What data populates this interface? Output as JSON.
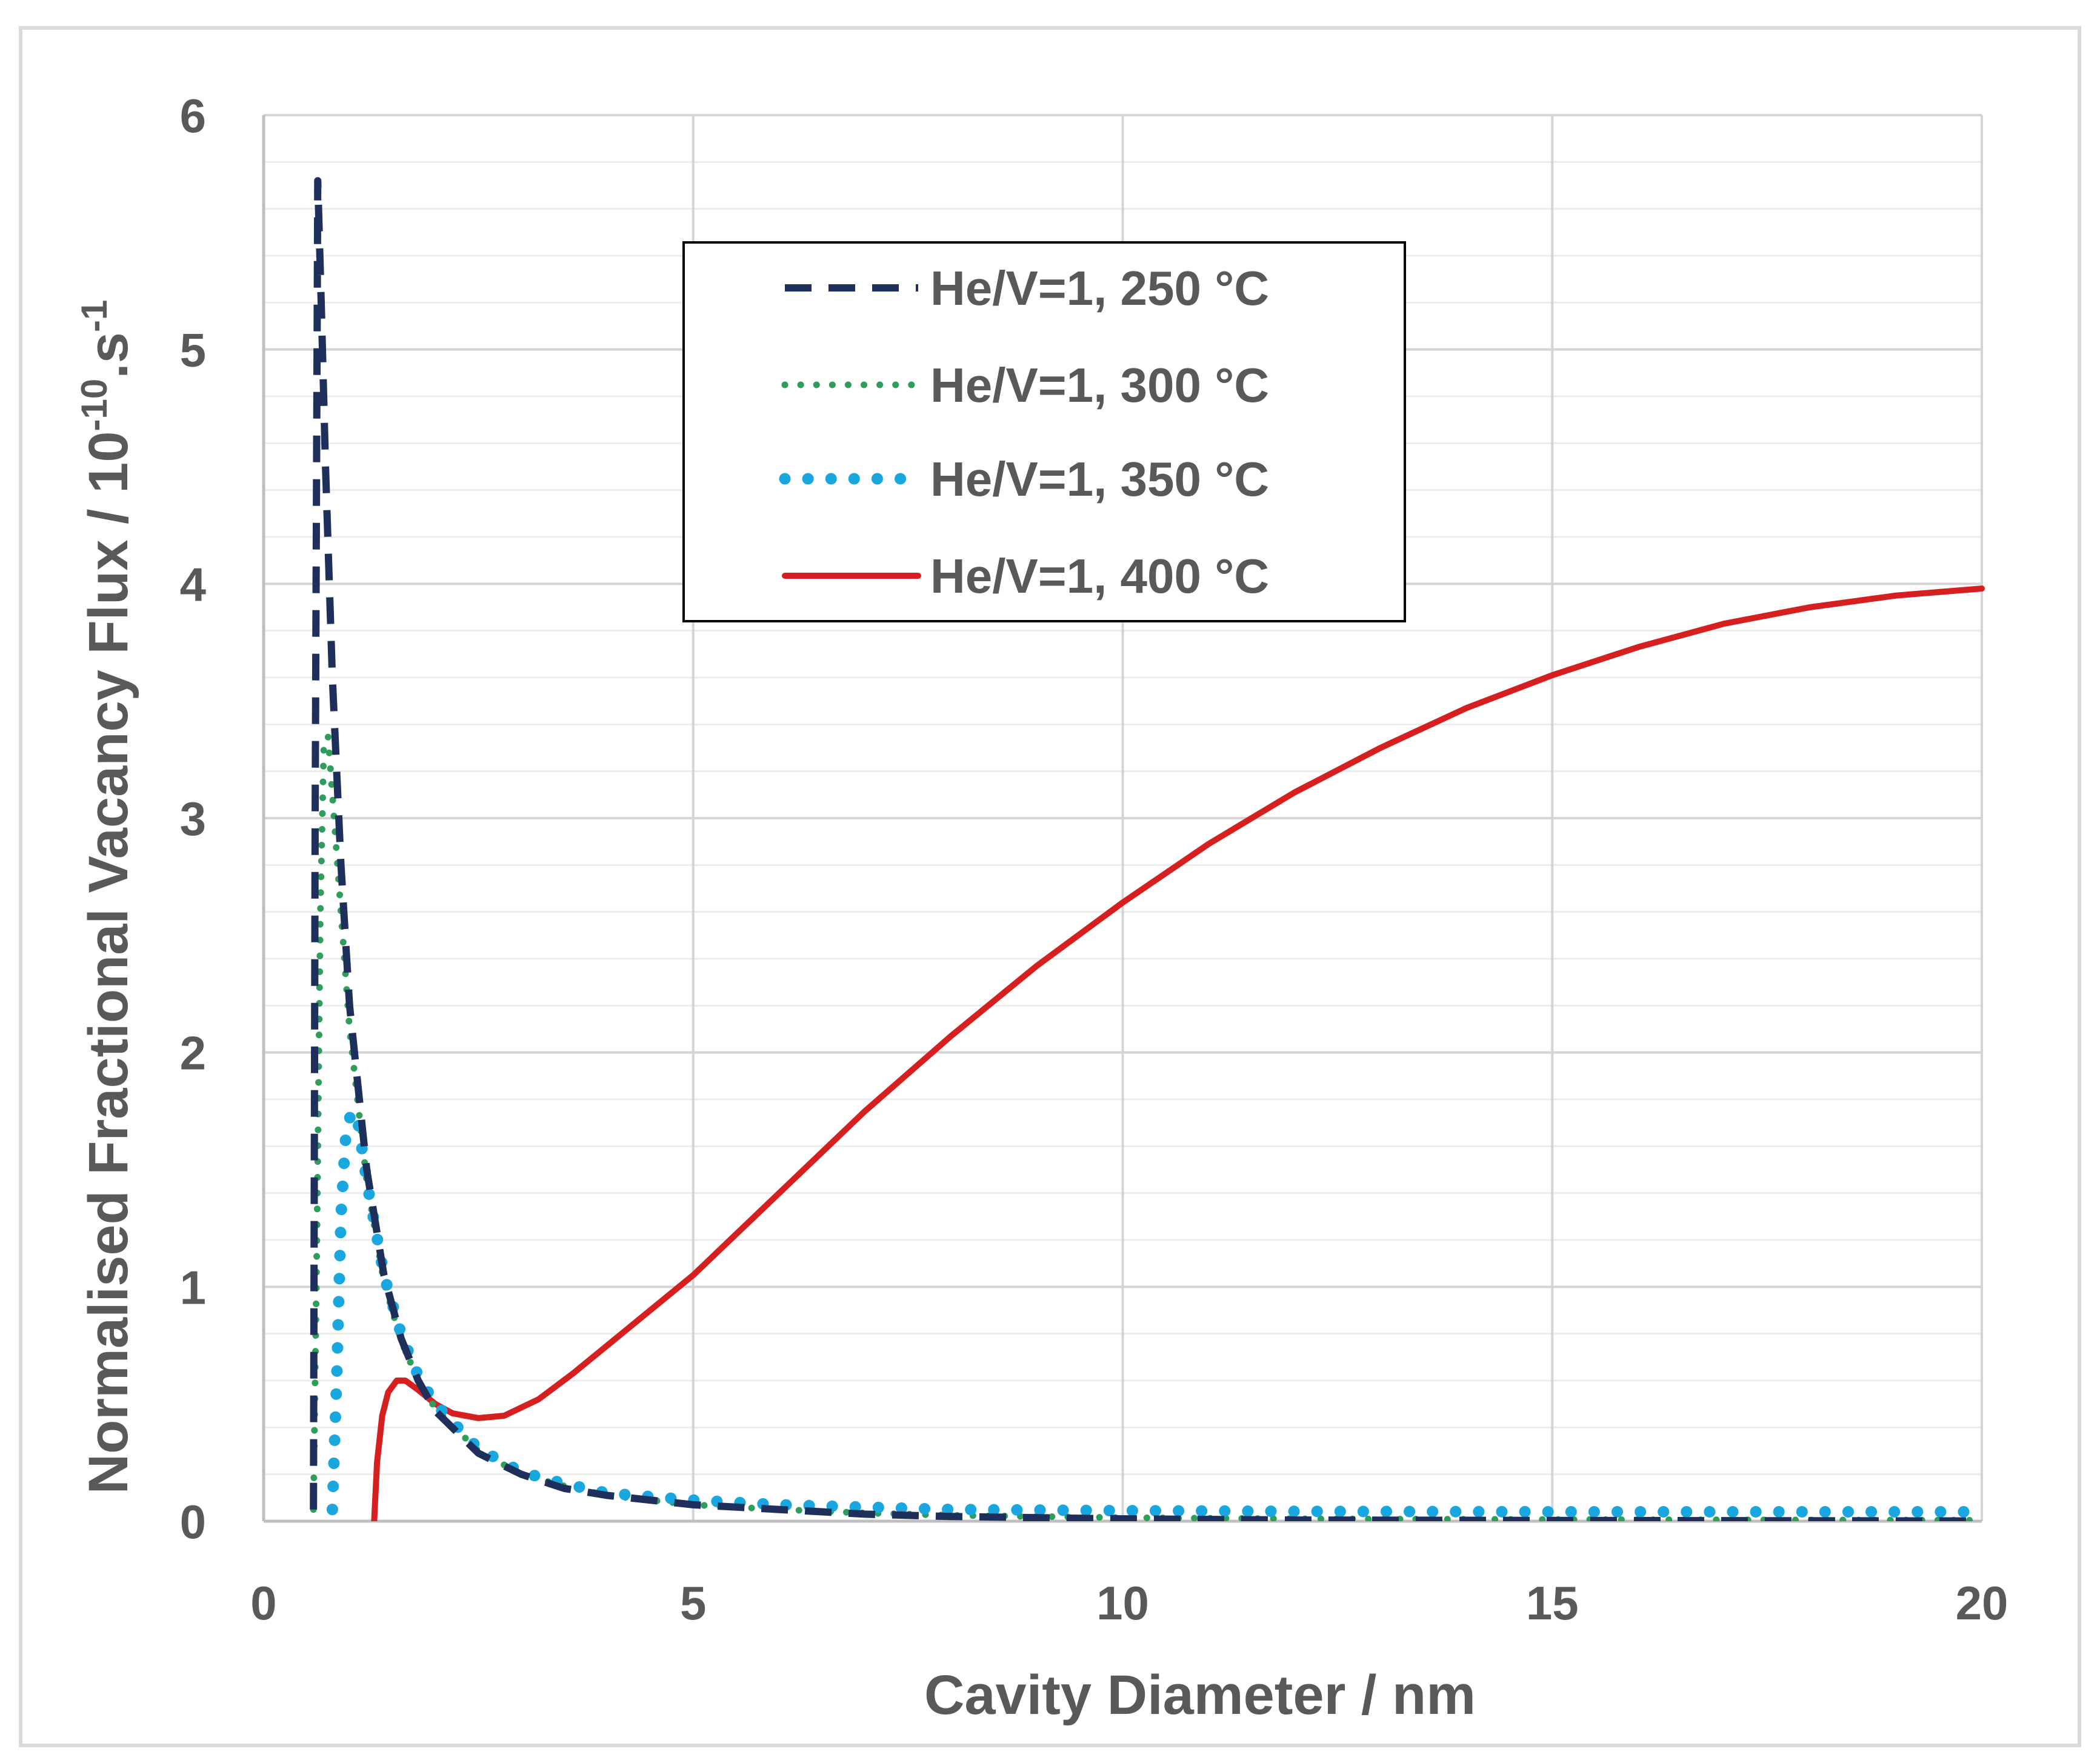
{
  "chart_data": {
    "type": "line",
    "title": "",
    "xlabel": "Cavity Diameter / nm",
    "ylabel_main": "Normalised Fractional Vacancy Flux / 10",
    "ylabel_sup1": "-10",
    "ylabel_mid": ".s",
    "ylabel_sup2": "-1",
    "xlim": [
      0,
      20
    ],
    "ylim": [
      0,
      6
    ],
    "xticks": [
      "0",
      "5",
      "10",
      "15",
      "20"
    ],
    "yticks": [
      "0",
      "1",
      "2",
      "3",
      "4",
      "5",
      "6"
    ],
    "grid": true,
    "legend_position": "top-center",
    "series": [
      {
        "name": "He/V=1, 250 °C",
        "color": "#1f2f5c",
        "style": "dashed",
        "x": [
          0.58,
          0.6,
          0.63,
          0.67,
          0.72,
          0.8,
          0.9,
          1.0,
          1.2,
          1.4,
          1.6,
          1.8,
          2.0,
          2.5,
          3.0,
          3.5,
          4.0,
          5.0,
          6.0,
          7.0,
          8.0,
          10.0,
          12.0,
          15.0,
          20.0
        ],
        "y": [
          0.05,
          3.0,
          5.72,
          5.2,
          4.5,
          3.6,
          2.8,
          2.2,
          1.5,
          1.05,
          0.78,
          0.6,
          0.47,
          0.29,
          0.2,
          0.14,
          0.11,
          0.07,
          0.05,
          0.03,
          0.02,
          0.01,
          0.005,
          0.003,
          0.001
        ]
      },
      {
        "name": "He/V=1, 300 °C",
        "color": "#2f9e5a",
        "style": "dotted-small",
        "x": [
          0.58,
          0.62,
          0.66,
          0.7,
          0.75,
          0.8,
          0.9,
          1.0,
          1.2,
          1.4,
          1.6,
          1.8,
          2.0,
          2.5,
          3.0,
          3.5,
          4.0,
          5.0,
          6.0,
          7.0,
          8.0,
          10.0,
          12.0,
          15.0,
          20.0
        ],
        "y": [
          0.05,
          1.2,
          2.6,
          3.3,
          3.35,
          3.1,
          2.6,
          2.1,
          1.45,
          1.02,
          0.77,
          0.6,
          0.48,
          0.3,
          0.2,
          0.15,
          0.11,
          0.07,
          0.05,
          0.035,
          0.025,
          0.015,
          0.01,
          0.007,
          0.004
        ]
      },
      {
        "name": "He/V=1, 350 °C",
        "color": "#1aa7e0",
        "style": "dotted-large",
        "x": [
          0.8,
          0.85,
          0.9,
          0.95,
          1.0,
          1.05,
          1.1,
          1.2,
          1.4,
          1.6,
          1.8,
          2.0,
          2.5,
          3.0,
          3.5,
          4.0,
          5.0,
          6.0,
          7.0,
          8.0,
          10.0,
          12.0,
          15.0,
          20.0
        ],
        "y": [
          0.05,
          0.6,
          1.3,
          1.62,
          1.72,
          1.75,
          1.7,
          1.45,
          1.05,
          0.8,
          0.62,
          0.5,
          0.31,
          0.21,
          0.16,
          0.12,
          0.09,
          0.07,
          0.06,
          0.05,
          0.045,
          0.042,
          0.04,
          0.04
        ]
      },
      {
        "name": "He/V=1, 400 °C",
        "color": "#d62020",
        "style": "solid",
        "x": [
          1.28,
          1.32,
          1.38,
          1.45,
          1.55,
          1.65,
          1.8,
          2.0,
          2.2,
          2.5,
          2.8,
          3.2,
          3.6,
          4.0,
          4.5,
          5.0,
          6.0,
          7.0,
          8.0,
          9.0,
          10.0,
          11.0,
          12.0,
          13.0,
          14.0,
          15.0,
          16.0,
          17.0,
          18.0,
          19.0,
          20.0
        ],
        "y": [
          -0.05,
          0.25,
          0.45,
          0.55,
          0.6,
          0.6,
          0.56,
          0.5,
          0.46,
          0.44,
          0.45,
          0.52,
          0.63,
          0.75,
          0.9,
          1.05,
          1.4,
          1.75,
          2.07,
          2.37,
          2.64,
          2.89,
          3.11,
          3.3,
          3.47,
          3.61,
          3.73,
          3.83,
          3.9,
          3.95,
          3.98
        ]
      }
    ]
  }
}
